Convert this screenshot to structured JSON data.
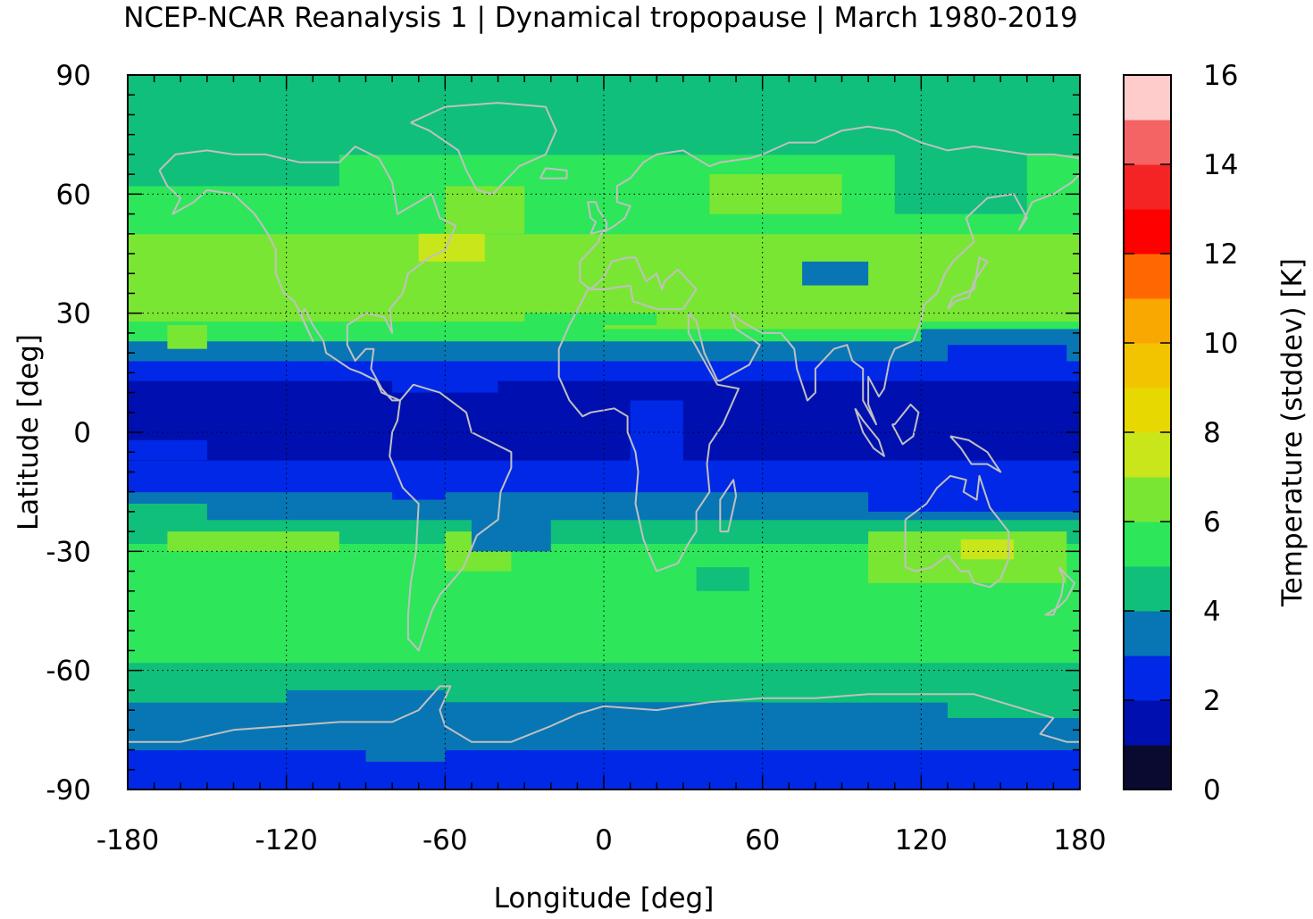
{
  "chart_data": {
    "type": "heatmap",
    "title": "NCEP-NCAR Reanalysis 1 | Dynamical tropopause | March 1980-2019",
    "xlabel": "Longitude [deg]",
    "ylabel": "Latitude [deg]",
    "colorbar_label": "Temperature (stddev) [K]",
    "xlim": [
      -180,
      180
    ],
    "ylim": [
      -90,
      90
    ],
    "xticks": [
      "-180",
      "-120",
      "-60",
      "0",
      "60",
      "120",
      "180"
    ],
    "yticks": [
      "90",
      "60",
      "30",
      "0",
      "-30",
      "-60",
      "-90"
    ],
    "colorbar_range": [
      0,
      16
    ],
    "colorbar_ticks": [
      "16",
      "14",
      "12",
      "10",
      "8",
      "6",
      "4",
      "2",
      "0"
    ],
    "colorbar_levels": [
      0,
      1,
      2,
      3,
      4,
      5,
      6,
      7,
      8,
      9,
      10,
      11,
      12,
      13,
      14,
      15,
      16
    ],
    "colorbar_colors": [
      "#0a0a30",
      "#0010b0",
      "#0028e6",
      "#0876b4",
      "#10bf7a",
      "#2ee65a",
      "#7ae634",
      "#c8e61a",
      "#e6d800",
      "#f2c400",
      "#f8a800",
      "#ff6800",
      "#ff0000",
      "#f42424",
      "#f46464",
      "#ffcccc"
    ],
    "grid": true,
    "overlay": "coastlines",
    "zonal_profile": [
      {
        "lat": [
          -90,
          -80
        ],
        "value": 2.5
      },
      {
        "lat": [
          -80,
          -68
        ],
        "value": 3.5
      },
      {
        "lat": [
          -68,
          -58
        ],
        "value": 4.5
      },
      {
        "lat": [
          -58,
          -38
        ],
        "value": 5.5
      },
      {
        "lat": [
          -38,
          -28
        ],
        "value": 5.5
      },
      {
        "lat": [
          -28,
          -22
        ],
        "value": 4.5
      },
      {
        "lat": [
          -22,
          -15
        ],
        "value": 3.5
      },
      {
        "lat": [
          -15,
          -7
        ],
        "value": 2.5
      },
      {
        "lat": [
          -7,
          13
        ],
        "value": 1.5
      },
      {
        "lat": [
          13,
          18
        ],
        "value": 2.5
      },
      {
        "lat": [
          18,
          23
        ],
        "value": 3.5
      },
      {
        "lat": [
          23,
          28
        ],
        "value": 5.5
      },
      {
        "lat": [
          28,
          40
        ],
        "value": 6.5
      },
      {
        "lat": [
          40,
          50
        ],
        "value": 6.5
      },
      {
        "lat": [
          50,
          70
        ],
        "value": 5.5
      },
      {
        "lat": [
          70,
          90
        ],
        "value": 4.5
      }
    ],
    "regions": [
      {
        "lon": [
          -165,
          -100
        ],
        "lat": [
          -30,
          -25
        ],
        "value": 6.5
      },
      {
        "lon": [
          -60,
          -35
        ],
        "lat": [
          -35,
          -25
        ],
        "value": 6.5
      },
      {
        "lon": [
          100,
          175
        ],
        "lat": [
          -38,
          -25
        ],
        "value": 6.5
      },
      {
        "lon": [
          135,
          155
        ],
        "lat": [
          -32,
          -27
        ],
        "value": 7.5
      },
      {
        "lon": [
          35,
          55
        ],
        "lat": [
          -40,
          -34
        ],
        "value": 4.5
      },
      {
        "lon": [
          -180,
          -120
        ],
        "lat": [
          33,
          42
        ],
        "value": 6.5
      },
      {
        "lon": [
          -165,
          -150
        ],
        "lat": [
          21,
          27
        ],
        "value": 6.5
      },
      {
        "lon": [
          -70,
          -45
        ],
        "lat": [
          43,
          50
        ],
        "value": 7.5
      },
      {
        "lon": [
          -60,
          -30
        ],
        "lat": [
          50,
          62
        ],
        "value": 6.5
      },
      {
        "lon": [
          40,
          90
        ],
        "lat": [
          55,
          65
        ],
        "value": 6.5
      },
      {
        "lon": [
          -155,
          -140
        ],
        "lat": [
          52,
          62
        ],
        "value": 5.5
      },
      {
        "lon": [
          -180,
          -150
        ],
        "lat": [
          75,
          90
        ],
        "value": 4.5
      },
      {
        "lon": [
          -180,
          -100
        ],
        "lat": [
          62,
          70
        ],
        "value": 4.5
      },
      {
        "lon": [
          100,
          180
        ],
        "lat": [
          70,
          90
        ],
        "value": 4.5
      },
      {
        "lon": [
          110,
          160
        ],
        "lat": [
          55,
          72
        ],
        "value": 4.5
      },
      {
        "lon": [
          75,
          100
        ],
        "lat": [
          37,
          43
        ],
        "value": 3.5
      },
      {
        "lon": [
          90,
          105
        ],
        "lat": [
          27,
          31
        ],
        "value": 7.5
      },
      {
        "lon": [
          0,
          120
        ],
        "lat": [
          26,
          33
        ],
        "value": 6.5
      },
      {
        "lon": [
          -30,
          20
        ],
        "lat": [
          27,
          30
        ],
        "value": 5.5
      },
      {
        "lon": [
          120,
          180
        ],
        "lat": [
          20,
          26
        ],
        "value": 3.5
      },
      {
        "lon": [
          130,
          175
        ],
        "lat": [
          17,
          22
        ],
        "value": 2.5
      },
      {
        "lon": [
          -80,
          -40
        ],
        "lat": [
          10,
          14
        ],
        "value": 2.5
      },
      {
        "lon": [
          10,
          30
        ],
        "lat": [
          -8,
          8
        ],
        "value": 2.5
      },
      {
        "lon": [
          -180,
          -150
        ],
        "lat": [
          -7,
          -2
        ],
        "value": 2.5
      },
      {
        "lon": [
          100,
          180
        ],
        "lat": [
          -20,
          -14
        ],
        "value": 2.5
      },
      {
        "lon": [
          -80,
          -60
        ],
        "lat": [
          -17,
          -10
        ],
        "value": 2.5
      },
      {
        "lon": [
          -50,
          -20
        ],
        "lat": [
          -30,
          -22
        ],
        "value": 3.5
      },
      {
        "lon": [
          -180,
          -150
        ],
        "lat": [
          -24,
          -18
        ],
        "value": 4.5
      },
      {
        "lon": [
          -120,
          -60
        ],
        "lat": [
          -75,
          -65
        ],
        "value": 3.5
      },
      {
        "lon": [
          -60,
          60
        ],
        "lat": [
          -72,
          -68
        ],
        "value": 3.5
      },
      {
        "lon": [
          -90,
          -60
        ],
        "lat": [
          -83,
          -78
        ],
        "value": 3.5
      },
      {
        "lon": [
          130,
          180
        ],
        "lat": [
          -72,
          -65
        ],
        "value": 4.5
      }
    ]
  }
}
